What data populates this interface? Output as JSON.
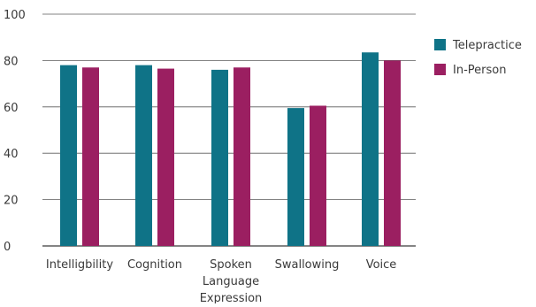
{
  "chart_data": {
    "type": "bar",
    "title": "",
    "xlabel": "",
    "ylabel": "",
    "ylim": [
      0,
      100
    ],
    "yticks": [
      0,
      20,
      40,
      60,
      80,
      100
    ],
    "grid": true,
    "legend_position": "right",
    "categories": [
      [
        "Intelligbility"
      ],
      [
        "Cognition"
      ],
      [
        "Spoken",
        "Language",
        "Expression"
      ],
      [
        "Swallowing"
      ],
      [
        "Voice"
      ]
    ],
    "series": [
      {
        "name": "Telepractice",
        "color": "#0f7387",
        "values": [
          78,
          78,
          76,
          59.5,
          83.5
        ]
      },
      {
        "name": "In-Person",
        "color": "#9b1f61",
        "values": [
          77,
          76.5,
          77,
          60.5,
          80
        ]
      }
    ]
  }
}
